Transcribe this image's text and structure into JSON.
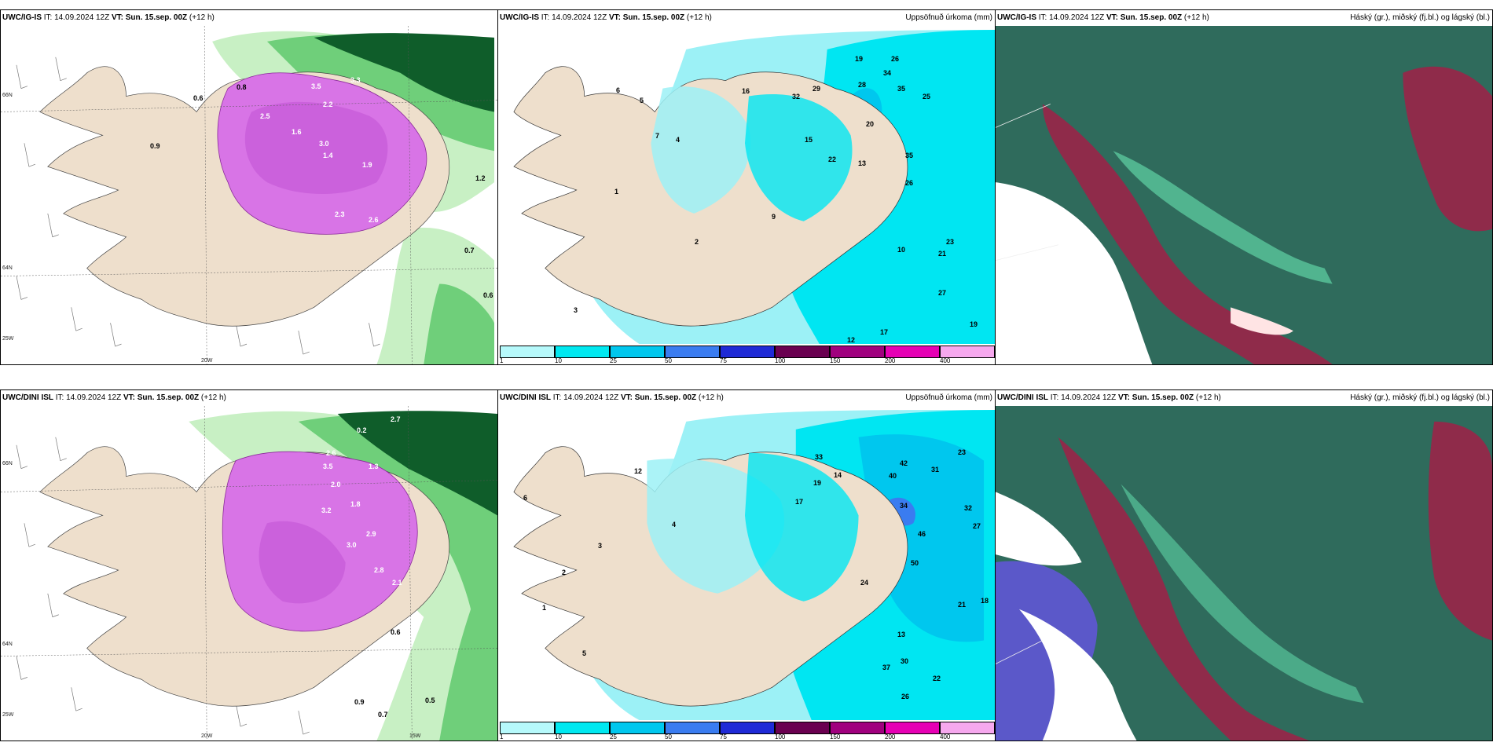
{
  "rows": [
    {
      "model": "UWC/IG-IS",
      "it_prefix": "IT: 14.09.2024 12Z",
      "vt_label": "VT: Sun. 15.sep. 00Z",
      "lead": "(+12 h)",
      "panels": {
        "cloud": {
          "right_title": ""
        },
        "precip": {
          "right_title": "Uppsöfnuð úrkoma (mm)"
        },
        "layers": {
          "right_title": "Háský (gr.), miðský (fj.bl.) og lágský (bl.)"
        }
      },
      "cloud_values": [
        "0.6",
        "0.8",
        "3.5",
        "3.3",
        "1.4",
        "2.2",
        "1.6",
        "1.9",
        "2.3",
        "2.6",
        "0.9",
        "0.7",
        "1.2",
        "0.6",
        "3.0",
        "2.5"
      ],
      "precip_values": [
        "19",
        "26",
        "34",
        "35",
        "25",
        "29",
        "32",
        "28",
        "20",
        "16",
        "15",
        "13",
        "22",
        "35",
        "26",
        "10",
        "21",
        "27",
        "17",
        "23",
        "19",
        "12",
        "9",
        "6",
        "5",
        "4",
        "7",
        "3",
        "2",
        "1"
      ]
    },
    {
      "model": "UWC/DINI ISL",
      "it_prefix": "IT: 14.09.2024 12Z",
      "vt_label": "VT: Sun. 15.sep. 00Z",
      "lead": "(+12 h)",
      "panels": {
        "cloud": {
          "right_title": ""
        },
        "precip": {
          "right_title": "Uppsöfnuð úrkoma (mm)"
        },
        "layers": {
          "right_title": "Háský (gr.), miðský (fj.bl.) og lágský (bl.)"
        }
      },
      "cloud_values": [
        "0.2",
        "2.7",
        "3.2",
        "2.6",
        "3.5",
        "1.3",
        "2.0",
        "1.8",
        "2.9",
        "3.0",
        "2.8",
        "0.6",
        "0.9",
        "0.7",
        "0.5",
        "2.1"
      ],
      "precip_values": [
        "23",
        "31",
        "40",
        "42",
        "33",
        "34",
        "32",
        "27",
        "46",
        "50",
        "21",
        "18",
        "24",
        "30",
        "37",
        "22",
        "26",
        "14",
        "19",
        "17",
        "13",
        "12",
        "6",
        "5",
        "4",
        "3",
        "2",
        "1"
      ]
    }
  ],
  "axis_labels": {
    "lat66": "66N",
    "lat64": "64N",
    "lon20": "20W",
    "lon15": "15W",
    "lon25": "25W"
  },
  "colorbar": {
    "labels": [
      "1",
      "10",
      "25",
      "50",
      "75",
      "100",
      "150",
      "200",
      "400"
    ],
    "colors": [
      "#b6f9fb",
      "#00e8f0",
      "#00c7ee",
      "#3a7cf0",
      "#1f2ad6",
      "#6a0050",
      "#a0007e",
      "#e600b4",
      "#f6a8ee"
    ]
  },
  "colors": {
    "land": "#eedfcc",
    "sea_cyan": "#9cf1f6",
    "sea_cyan_dark": "#00e6f2",
    "green_light": "#c8f0c4",
    "green_mid": "#6fcf7a",
    "green_dark": "#0f5d2a",
    "magenta": "#d874e6",
    "layers_bg": "#2f6b5c",
    "layers_red": "#8f2b4a",
    "layers_blue": "#5b58c9"
  }
}
